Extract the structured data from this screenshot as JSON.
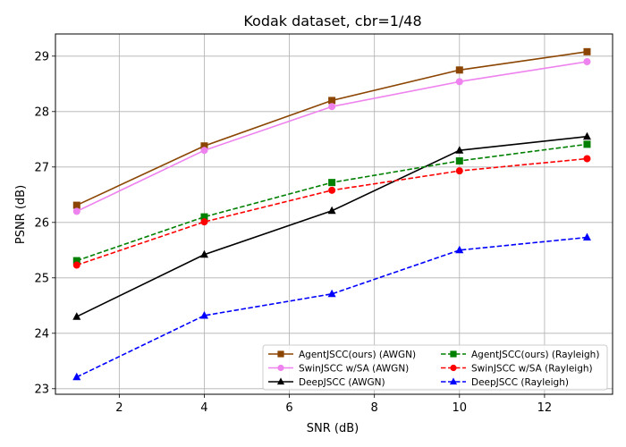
{
  "chart_data": {
    "type": "line",
    "title": "Kodak dataset, cbr=1/48",
    "xlabel": "SNR (dB)",
    "ylabel": "PSNR (dB)",
    "xlim": [
      0.5,
      13.6
    ],
    "ylim": [
      22.9,
      29.4
    ],
    "xticks": [
      2,
      4,
      6,
      8,
      10,
      12
    ],
    "yticks": [
      23,
      24,
      25,
      26,
      27,
      28,
      29
    ],
    "grid": true,
    "legend_position": "bottom-right",
    "legend_columns": 2,
    "x": [
      1,
      4,
      7,
      10,
      13
    ],
    "series": [
      {
        "name": "AgentJSCC(ours) (AWGN)",
        "values": [
          26.31,
          27.38,
          28.2,
          28.75,
          29.08
        ],
        "color": "#8b4500",
        "dash": "solid",
        "marker": "square"
      },
      {
        "name": "SwinJSCC w/SA (AWGN)",
        "values": [
          26.2,
          27.3,
          28.09,
          28.54,
          28.9
        ],
        "color": "#ee82ee",
        "dash": "solid",
        "marker": "circle"
      },
      {
        "name": "DeepJSCC (AWGN)",
        "values": [
          24.3,
          25.42,
          26.21,
          27.3,
          27.55
        ],
        "color": "#000000",
        "dash": "solid",
        "marker": "triangle"
      },
      {
        "name": "AgentJSCC(ours) (Rayleigh)",
        "values": [
          25.31,
          26.1,
          26.72,
          27.11,
          27.41
        ],
        "color": "#008000",
        "dash": "dashed",
        "marker": "square"
      },
      {
        "name": "SwinJSCC w/SA (Rayleigh)",
        "values": [
          25.23,
          26.01,
          26.58,
          26.93,
          27.15
        ],
        "color": "#ff0000",
        "dash": "dashed",
        "marker": "circle"
      },
      {
        "name": "DeepJSCC (Rayleigh)",
        "values": [
          23.21,
          24.32,
          24.71,
          25.5,
          25.73
        ],
        "color": "#0000ff",
        "dash": "dashed",
        "marker": "triangle"
      }
    ]
  }
}
